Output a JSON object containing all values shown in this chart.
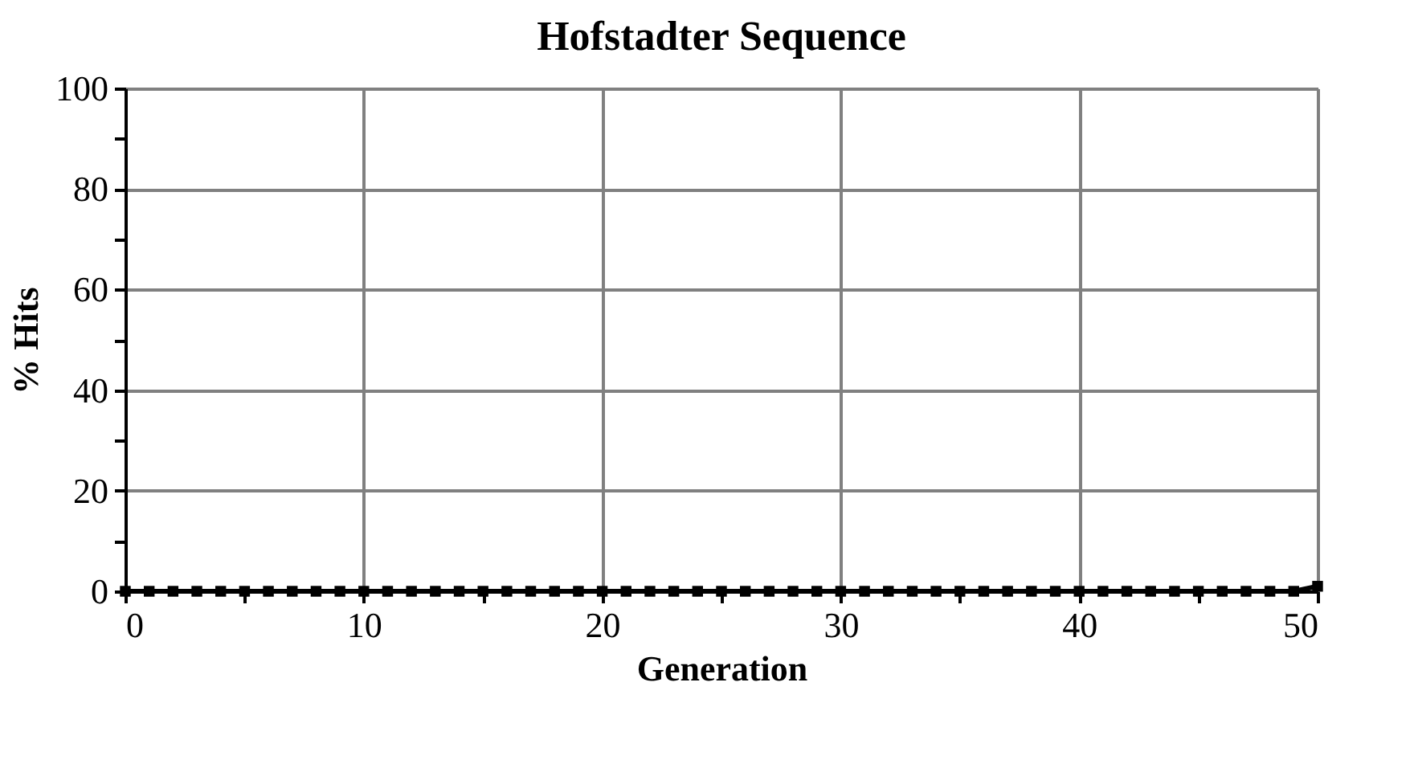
{
  "chart_data": {
    "type": "line",
    "title": "Hofstadter Sequence",
    "xlabel": "Generation",
    "ylabel": "% Hits",
    "x": [
      0,
      1,
      2,
      3,
      4,
      5,
      6,
      7,
      8,
      9,
      10,
      11,
      12,
      13,
      14,
      15,
      16,
      17,
      18,
      19,
      20,
      21,
      22,
      23,
      24,
      25,
      26,
      27,
      28,
      29,
      30,
      31,
      32,
      33,
      34,
      35,
      36,
      37,
      38,
      39,
      40,
      41,
      42,
      43,
      44,
      45,
      46,
      47,
      48,
      49,
      50
    ],
    "series": [
      {
        "color": "#000000",
        "values": [
          0,
          0,
          0,
          0,
          0,
          0,
          0,
          0,
          0,
          0,
          0,
          0,
          0,
          0,
          0,
          0,
          0,
          0,
          0,
          0,
          0,
          0,
          0,
          0,
          0,
          0,
          0,
          0,
          0,
          0,
          0,
          0,
          0,
          0,
          0,
          0,
          0,
          0,
          0,
          0,
          0,
          0,
          0,
          0,
          0,
          0,
          0,
          0,
          0,
          0,
          1
        ]
      }
    ],
    "xlim": [
      0,
      50
    ],
    "ylim": [
      0,
      100
    ],
    "xticks": [
      0,
      {
        "value": 5,
        "label": null
      },
      10,
      {
        "value": 15,
        "label": null
      },
      20,
      {
        "value": 25,
        "label": null
      },
      30,
      {
        "value": 35,
        "label": null
      },
      40,
      {
        "value": 45,
        "label": null
      },
      50
    ],
    "yticks": [
      0,
      {
        "value": 10,
        "label": null
      },
      20,
      {
        "value": 30,
        "label": null
      },
      40,
      {
        "value": 50,
        "label": null
      },
      60,
      {
        "value": 70,
        "label": null
      },
      80,
      {
        "value": 90,
        "label": null
      },
      100
    ],
    "grid": true,
    "marker": "square",
    "line_style": "solid"
  }
}
